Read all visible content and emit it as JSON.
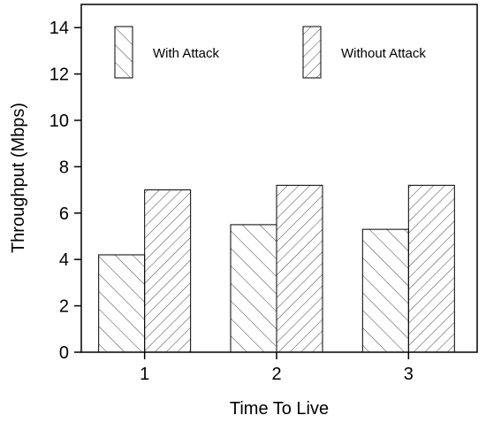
{
  "chart_data": {
    "type": "bar",
    "title": "",
    "xlabel": "Time To Live",
    "ylabel": "Throughput (Mbps)",
    "categories": [
      "1",
      "2",
      "3"
    ],
    "ylim": [
      0,
      15
    ],
    "yticks": [
      0,
      2,
      4,
      6,
      8,
      10,
      12,
      14
    ],
    "grid": false,
    "legend": "top",
    "series": [
      {
        "name": "With Attack",
        "values": [
          4.2,
          5.5,
          5.3
        ],
        "hatch": "backslash"
      },
      {
        "name": "Without Attack",
        "values": [
          7.0,
          7.2,
          7.2
        ],
        "hatch": "slash"
      }
    ]
  }
}
